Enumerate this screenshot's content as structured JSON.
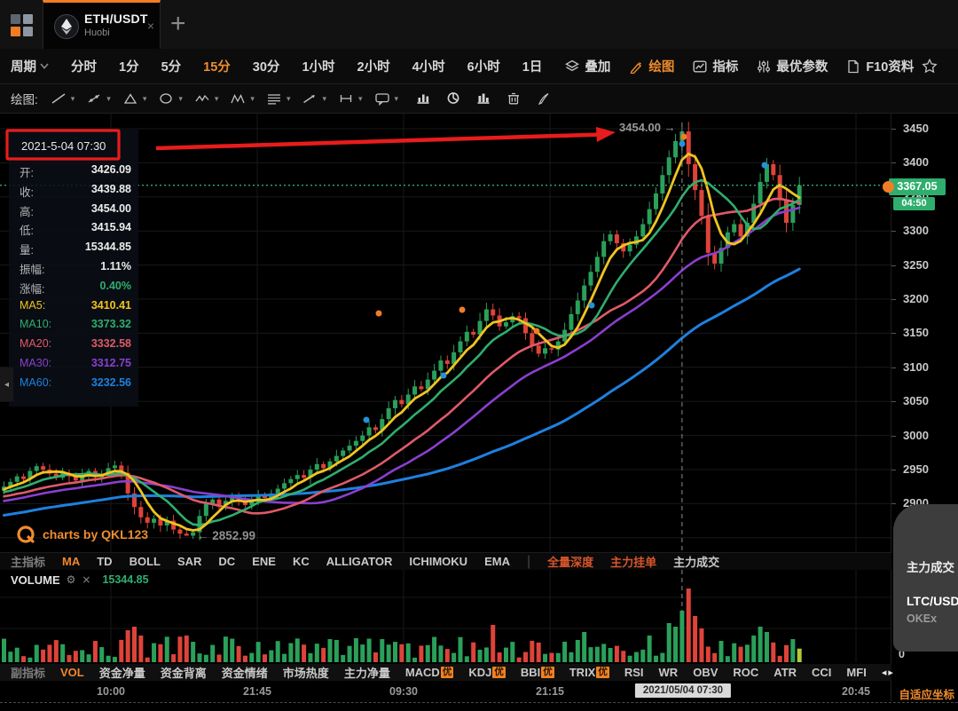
{
  "tab_bar": {
    "symbol": "ETH/USDT",
    "exchange": "Huobi",
    "close_label": "×",
    "new_tab_label": "+"
  },
  "toolbar": {
    "period_label": "周期",
    "periods": [
      {
        "label": "分时",
        "active": false
      },
      {
        "label": "1分",
        "active": false
      },
      {
        "label": "5分",
        "active": false
      },
      {
        "label": "15分",
        "active": true
      },
      {
        "label": "30分",
        "active": false
      },
      {
        "label": "1小时",
        "active": false
      },
      {
        "label": "2小时",
        "active": false
      },
      {
        "label": "4小时",
        "active": false
      },
      {
        "label": "6小时",
        "active": false
      },
      {
        "label": "1日",
        "active": false
      }
    ],
    "tools": [
      {
        "icon": "overlay-icon",
        "label": "叠加",
        "active": false
      },
      {
        "icon": "draw-icon",
        "label": "绘图",
        "active": true
      },
      {
        "icon": "indicator-icon",
        "label": "指标",
        "active": false
      },
      {
        "icon": "optimal-params-icon",
        "label": "最优参数",
        "active": false
      },
      {
        "icon": "f10-doc-icon",
        "label": "F10资料",
        "active": false
      }
    ]
  },
  "drawbar": {
    "label": "绘图:",
    "dropdown_tools": [
      "line",
      "ray",
      "shape",
      "ellipse",
      "wave",
      "pattern",
      "fib",
      "arrow",
      "range",
      "note"
    ],
    "solo_tools": [
      "position-line",
      "position-pie",
      "position-bar",
      "trash",
      "pen"
    ]
  },
  "info_panel": {
    "datetime": "2021-5-04 07:30",
    "rows": [
      {
        "label": "开:",
        "value": "3426.09",
        "lc": "#b5b5b5",
        "vc": "#ededed"
      },
      {
        "label": "收:",
        "value": "3439.88",
        "lc": "#b5b5b5",
        "vc": "#ededed"
      },
      {
        "label": "高:",
        "value": "3454.00",
        "lc": "#b5b5b5",
        "vc": "#ededed"
      },
      {
        "label": "低:",
        "value": "3415.94",
        "lc": "#b5b5b5",
        "vc": "#ededed"
      },
      {
        "label": "量:",
        "value": "15344.85",
        "lc": "#b5b5b5",
        "vc": "#ededed"
      },
      {
        "label": "振幅:",
        "value": "1.11%",
        "lc": "#b5b5b5",
        "vc": "#ededed"
      },
      {
        "label": "涨幅:",
        "value": "0.40%",
        "lc": "#b5b5b5",
        "vc": "#2fae6e"
      },
      {
        "label": "MA5:",
        "value": "3410.41",
        "lc": "#f0c420",
        "vc": "#f0c420"
      },
      {
        "label": "MA10:",
        "value": "3373.32",
        "lc": "#2fae6e",
        "vc": "#2fae6e"
      },
      {
        "label": "MA20:",
        "value": "3332.58",
        "lc": "#e05a6a",
        "vc": "#e05a6a"
      },
      {
        "label": "MA30:",
        "value": "3312.75",
        "lc": "#8a3fd0",
        "vc": "#8a3fd0"
      },
      {
        "label": "MA60:",
        "value": "3232.56",
        "lc": "#1e80e0",
        "vc": "#1e80e0"
      }
    ]
  },
  "chart_data": {
    "type": "candlestick",
    "symbol": "ETH/USDT",
    "exchange": "Huobi",
    "interval": "15分",
    "hovered_candle": {
      "time": "2021-5-04 07:30",
      "open": 3426.09,
      "close": 3439.88,
      "high": 3454.0,
      "low": 3415.94,
      "volume": 15344.85,
      "amplitude": "1.11%",
      "change": "0.40%"
    },
    "ma_values": {
      "MA5": 3410.41,
      "MA10": 3373.32,
      "MA20": 3332.58,
      "MA30": 3312.75,
      "MA60": 3232.56
    },
    "last_price": 3367.05,
    "session_high": 3454.0,
    "session_low": 2852.99,
    "y_axis": {
      "min": 2850,
      "max": 3470,
      "tick_step": 50
    },
    "closes": [
      2925,
      2932,
      2940,
      2936,
      2948,
      2955,
      2950,
      2944,
      2938,
      2945,
      2940,
      2934,
      2942,
      2948,
      2939,
      2944,
      2952,
      2956,
      2945,
      2915,
      2895,
      2880,
      2872,
      2878,
      2868,
      2875,
      2862,
      2856,
      2853,
      2858,
      2882,
      2900,
      2906,
      2898,
      2904,
      2910,
      2905,
      2898,
      2903,
      2912,
      2908,
      2915,
      2922,
      2930,
      2936,
      2942,
      2938,
      2950,
      2958,
      2952,
      2962,
      2970,
      2978,
      2985,
      2992,
      3000,
      3012,
      3008,
      3024,
      3040,
      3052,
      3046,
      3060,
      3072,
      3068,
      3082,
      3095,
      3110,
      3105,
      3122,
      3138,
      3152,
      3148,
      3168,
      3185,
      3176,
      3160,
      3166,
      3175,
      3172,
      3150,
      3132,
      3120,
      3128,
      3126,
      3138,
      3155,
      3178,
      3198,
      3220,
      3240,
      3262,
      3285,
      3295,
      3282,
      3270,
      3280,
      3292,
      3310,
      3332,
      3355,
      3382,
      3408,
      3432,
      3446,
      3398,
      3360,
      3322,
      3268,
      3252,
      3275,
      3298,
      3310,
      3292,
      3312,
      3340,
      3372,
      3398,
      3382,
      3345,
      3312,
      3338,
      3367.05
    ]
  },
  "colors": {
    "up": "#2aa05a",
    "down": "#de4339",
    "ma5": "#f0c420",
    "ma10": "#2fae6e",
    "ma20": "#e05a6a",
    "ma30": "#8a3fd0",
    "ma60": "#1e80e0",
    "accent": "#f07d26",
    "price_tag": "#2fae6e",
    "annotation": "#e81c1c"
  },
  "price_axis": {
    "ticks": [
      "3450",
      "3400",
      "3350",
      "3300",
      "3250",
      "3200",
      "3150",
      "3100",
      "3050",
      "3000",
      "2950",
      "2900"
    ],
    "last_price_label": "3367.05",
    "countdown": "04:50",
    "volume_zero": "0"
  },
  "annotations": {
    "high_label": "3454.00 →",
    "low_label": "← 2852.99",
    "watermark": "charts by QKL123",
    "crosshair_time": "2021/05/04 07:30"
  },
  "indicator_tabs": {
    "items": [
      {
        "label": "主指标",
        "style": "dim"
      },
      {
        "label": "MA",
        "style": "on"
      },
      {
        "label": "TD",
        "style": ""
      },
      {
        "label": "BOLL",
        "style": ""
      },
      {
        "label": "SAR",
        "style": ""
      },
      {
        "label": "DC",
        "style": ""
      },
      {
        "label": "ENE",
        "style": ""
      },
      {
        "label": "KC",
        "style": ""
      },
      {
        "label": "ALLIGATOR",
        "style": ""
      },
      {
        "label": "ICHIMOKU",
        "style": ""
      },
      {
        "label": "EMA",
        "style": ""
      }
    ],
    "divider": "|",
    "extra_items": [
      {
        "label": "全量深度",
        "style": "warm"
      },
      {
        "label": "主力挂单",
        "style": "warm"
      },
      {
        "label": "主力成交",
        "style": ""
      }
    ]
  },
  "volume_header": {
    "title": "VOLUME",
    "gear": "⚙",
    "close": "×",
    "value": "15344.85"
  },
  "sub_indicator_tabs": {
    "items": [
      {
        "label": "副指标",
        "style": "dim",
        "badge": ""
      },
      {
        "label": "VOL",
        "style": "on",
        "badge": ""
      },
      {
        "label": "资金净量",
        "style": "",
        "badge": ""
      },
      {
        "label": "资金背离",
        "style": "",
        "badge": ""
      },
      {
        "label": "资金情绪",
        "style": "",
        "badge": ""
      },
      {
        "label": "市场热度",
        "style": "",
        "badge": ""
      },
      {
        "label": "主力净量",
        "style": "",
        "badge": ""
      },
      {
        "label": "MACD",
        "style": "",
        "badge": "优"
      },
      {
        "label": "KDJ",
        "style": "",
        "badge": "优"
      },
      {
        "label": "BBI",
        "style": "",
        "badge": "优"
      },
      {
        "label": "TRIX",
        "style": "",
        "badge": "优"
      },
      {
        "label": "RSI",
        "style": "",
        "badge": ""
      },
      {
        "label": "WR",
        "style": "",
        "badge": ""
      },
      {
        "label": "OBV",
        "style": "",
        "badge": ""
      },
      {
        "label": "ROC",
        "style": "",
        "badge": ""
      },
      {
        "label": "ATR",
        "style": "",
        "badge": ""
      },
      {
        "label": "CCI",
        "style": "",
        "badge": ""
      },
      {
        "label": "MFI",
        "style": "",
        "badge": ""
      }
    ],
    "pager": "◂▸"
  },
  "time_axis": {
    "labels": [
      "10:00",
      "21:45",
      "09:30",
      "21:15",
      "20:45"
    ],
    "adaptive_label": "自适应坐标"
  },
  "popup": {
    "title": "主力成交",
    "symbol": "LTC/USDT",
    "exchange": "OKEx"
  }
}
